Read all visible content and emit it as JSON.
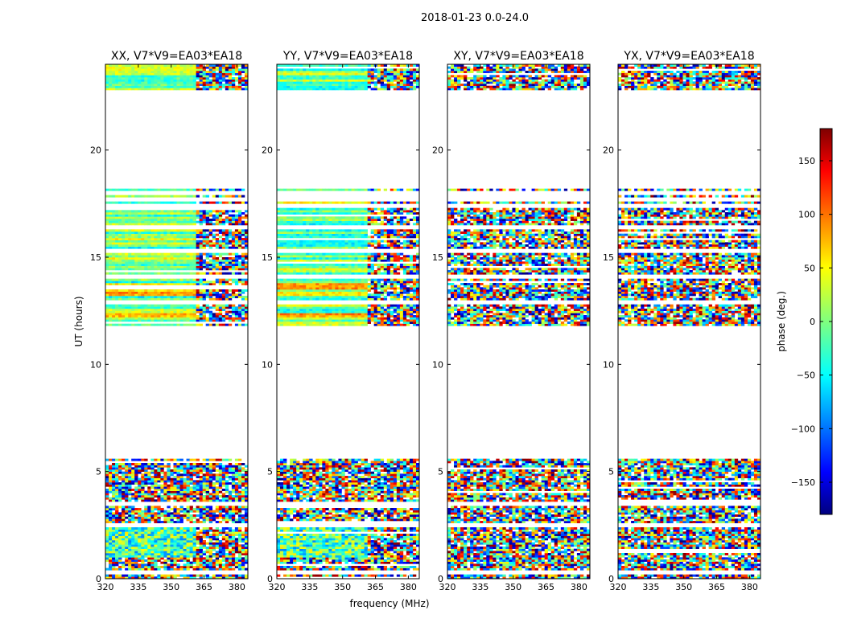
{
  "suptitle": "2018-01-23 0.0-24.0",
  "chart_data": {
    "type": "heatmap",
    "panels": [
      {
        "title": "XX, V7*V9=EA03*EA18",
        "pol": "XX"
      },
      {
        "title": "YY, V7*V9=EA03*EA18",
        "pol": "YY"
      },
      {
        "title": "XY, V7*V9=EA03*EA18",
        "pol": "XY"
      },
      {
        "title": "YX, V7*V9=EA03*EA18",
        "pol": "YX"
      }
    ],
    "xlabel": "frequency (MHz)",
    "ylabel": "UT (hours)",
    "xlim": [
      320,
      385
    ],
    "ylim": [
      0,
      24
    ],
    "xticks": [
      320,
      335,
      350,
      365,
      380
    ],
    "yticks": [
      0,
      5,
      10,
      15,
      20
    ],
    "colorbar": {
      "label": "phase (deg.)",
      "range": [
        -180,
        180
      ],
      "ticks": [
        150,
        100,
        50,
        0,
        -50,
        -100,
        -150
      ],
      "tick_labels": [
        "150",
        "100",
        "50",
        "0",
        "−50",
        "−100",
        "−150"
      ],
      "colormap": "jet"
    },
    "data_hour_ranges": [
      [
        0,
        5.6
      ],
      [
        11.8,
        18.2
      ],
      [
        22.8,
        24
      ]
    ],
    "smooth_region_end_mhz": 361
  }
}
